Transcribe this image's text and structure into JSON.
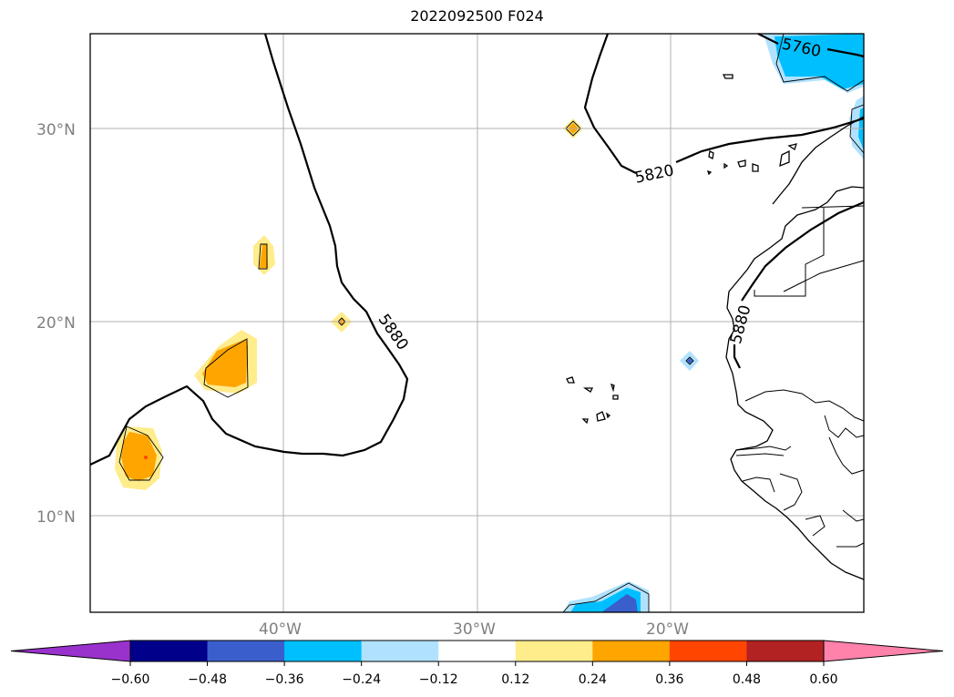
{
  "title": "2022092500 F024",
  "map": {
    "lat_labels": [
      "30°N",
      "20°N",
      "10°N"
    ],
    "lon_labels": [
      "40°W",
      "30°W",
      "20°W"
    ],
    "contour_labels": [
      "5760",
      "5820",
      "5880",
      "5880"
    ]
  },
  "colorbar": {
    "ticks": [
      "−0.60",
      "−0.48",
      "−0.36",
      "−0.24",
      "−0.12",
      "0.12",
      "0.24",
      "0.36",
      "0.48",
      "0.60"
    ],
    "colors": [
      "#9932cc",
      "#00008b",
      "#3a5fcd",
      "#00bfff",
      "#b0e2ff",
      "#ffffff",
      "#ffec8b",
      "#ffa500",
      "#ff4500",
      "#b22222",
      "#ff82ab"
    ]
  }
}
